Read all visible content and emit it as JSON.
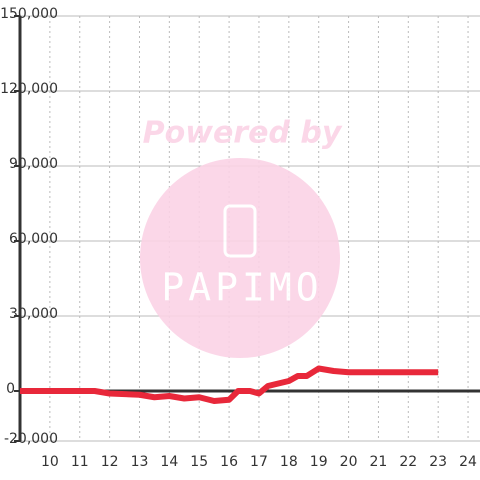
{
  "chart_data": {
    "type": "line",
    "watermark": {
      "title": "Powered by",
      "brand": "PAPIMO"
    },
    "x": [
      9,
      11.5,
      12,
      13,
      13.5,
      14,
      14.5,
      15,
      15.5,
      16,
      16.3,
      16.7,
      17,
      17.3,
      18,
      18.3,
      18.6,
      19,
      19.5,
      20,
      23
    ],
    "series": [
      {
        "color": "#e8283a",
        "values": [
          0,
          0,
          -1000,
          -1500,
          -2500,
          -2000,
          -3000,
          -2500,
          -4000,
          -3500,
          0,
          0,
          -1000,
          2000,
          4000,
          6000,
          6000,
          9000,
          8000,
          7500,
          7500
        ]
      }
    ],
    "xlim": [
      9,
      24.4
    ],
    "xticks": [
      10,
      11,
      12,
      13,
      14,
      15,
      16,
      17,
      18,
      19,
      20,
      21,
      22,
      23,
      24
    ],
    "ylim": [
      -20000,
      150000
    ],
    "yticks": [
      {
        "value": -20000,
        "label": "-20,000"
      },
      0,
      {
        "value": 30000,
        "label": "30,000"
      },
      {
        "value": 60000,
        "label": "60,000"
      },
      {
        "value": 90000,
        "label": "90,000"
      },
      {
        "value": 120000,
        "label": "120,000"
      },
      {
        "value": 150000,
        "label": "150,000"
      }
    ],
    "grid": true
  }
}
